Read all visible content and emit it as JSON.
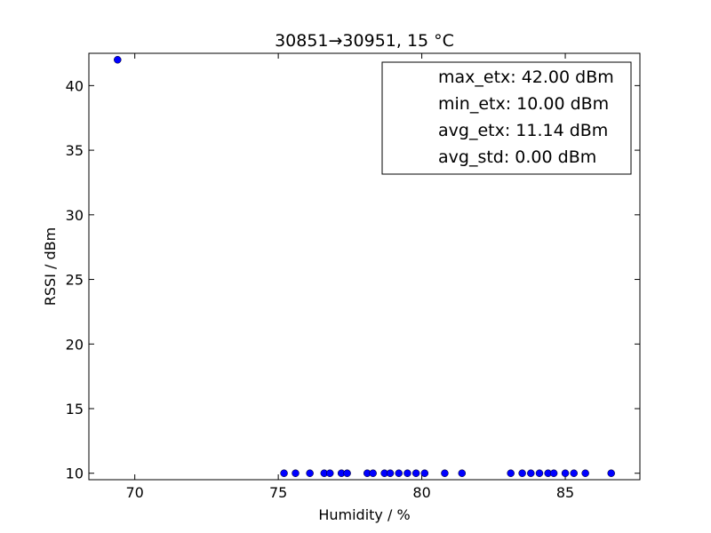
{
  "chart_data": {
    "type": "scatter",
    "title": "30851→30951, 15 °C",
    "xlabel": "Humidity / %",
    "ylabel": "RSSI / dBm",
    "xlim": [
      68.4,
      87.6
    ],
    "ylim": [
      9.5,
      42.5
    ],
    "xticks": [
      70,
      75,
      80,
      85
    ],
    "yticks": [
      10,
      15,
      20,
      25,
      30,
      35,
      40
    ],
    "grid": false,
    "marker_color": "#0000ff",
    "legend": {
      "placement": "top-right",
      "entries": [
        "max_etx: 42.00 dBm",
        "min_etx: 10.00 dBm",
        "avg_etx: 11.14 dBm",
        "avg_std: 0.00 dBm"
      ]
    },
    "points": [
      {
        "x": 69.4,
        "y": 42
      },
      {
        "x": 75.2,
        "y": 10
      },
      {
        "x": 75.6,
        "y": 10
      },
      {
        "x": 76.1,
        "y": 10
      },
      {
        "x": 76.6,
        "y": 10
      },
      {
        "x": 76.8,
        "y": 10
      },
      {
        "x": 77.2,
        "y": 10
      },
      {
        "x": 77.4,
        "y": 10
      },
      {
        "x": 78.1,
        "y": 10
      },
      {
        "x": 78.3,
        "y": 10
      },
      {
        "x": 78.7,
        "y": 10
      },
      {
        "x": 78.9,
        "y": 10
      },
      {
        "x": 79.2,
        "y": 10
      },
      {
        "x": 79.5,
        "y": 10
      },
      {
        "x": 79.8,
        "y": 10
      },
      {
        "x": 80.1,
        "y": 10
      },
      {
        "x": 80.8,
        "y": 10
      },
      {
        "x": 81.4,
        "y": 10
      },
      {
        "x": 83.1,
        "y": 10
      },
      {
        "x": 83.5,
        "y": 10
      },
      {
        "x": 83.8,
        "y": 10
      },
      {
        "x": 84.1,
        "y": 10
      },
      {
        "x": 84.4,
        "y": 10
      },
      {
        "x": 84.6,
        "y": 10
      },
      {
        "x": 85.0,
        "y": 10
      },
      {
        "x": 85.3,
        "y": 10
      },
      {
        "x": 85.7,
        "y": 10
      },
      {
        "x": 86.6,
        "y": 10
      }
    ]
  }
}
